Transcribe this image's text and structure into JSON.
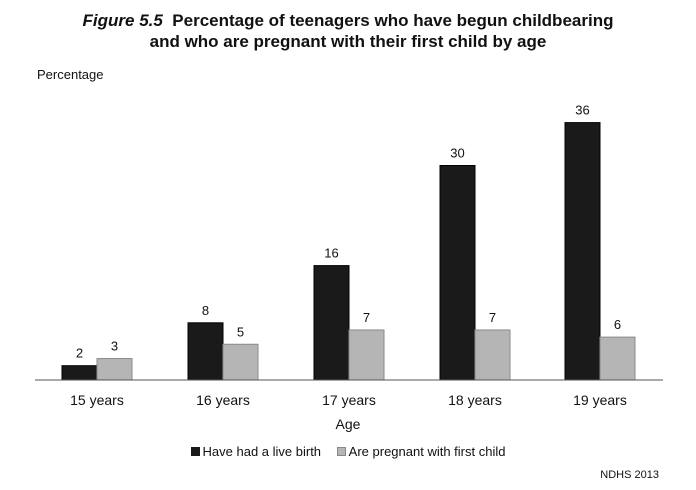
{
  "title": {
    "figure_label": "Figure 5.5",
    "line1": "Percentage of teenagers who have begun childbearing",
    "line2": "and who are pregnant with their first child by age"
  },
  "source": "NDHS 2013",
  "chart_data": {
    "type": "bar",
    "title": "Figure 5.5 Percentage of teenagers who have begun childbearing and who are pregnant with their first child by age",
    "xlabel": "Age",
    "ylabel": "Percentage",
    "categories": [
      "15 years",
      "16 years",
      "17 years",
      "18 years",
      "19 years"
    ],
    "series": [
      {
        "name": "Have had a live birth",
        "values": [
          2,
          8,
          16,
          30,
          36
        ],
        "color": "#1a1a1a"
      },
      {
        "name": "Are pregnant with first child",
        "values": [
          3,
          5,
          7,
          7,
          6
        ],
        "color": "#b5b5b5"
      }
    ],
    "ylim": [
      0,
      40
    ],
    "grid": false,
    "legend": "bottom",
    "data_labels": true
  }
}
